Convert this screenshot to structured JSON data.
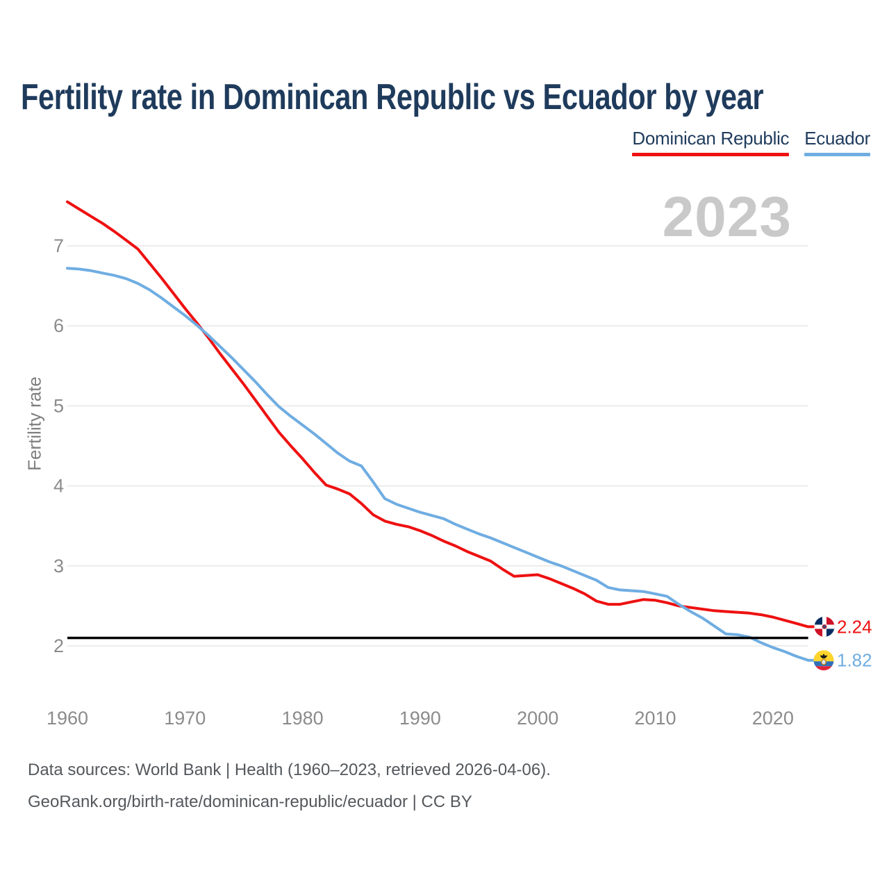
{
  "title": "Fertility rate in Dominican Republic vs Ecuador by year",
  "watermark": "2023",
  "legend": {
    "items": [
      {
        "label": "Dominican Republic"
      },
      {
        "label": "Ecuador"
      }
    ]
  },
  "y_axis": {
    "label": "Fertility rate",
    "ticks": [
      2,
      3,
      4,
      5,
      6,
      7
    ]
  },
  "x_axis": {
    "ticks": [
      1960,
      1970,
      1980,
      1990,
      2000,
      2010,
      2020
    ]
  },
  "end_labels": [
    {
      "series": "Dominican Republic",
      "value": "2.24",
      "icon": "dominican-republic-flag-icon"
    },
    {
      "series": "Ecuador",
      "value": "1.82",
      "icon": "ecuador-flag-icon"
    }
  ],
  "footer": {
    "line1": "Data sources: World Bank | Health (1960–2023, retrieved 2026-04-06).",
    "line2": "GeoRank.org/birth-rate/dominican-republic/ecuador | CC BY"
  },
  "colors": {
    "dominican_republic": "#ee1111",
    "ecuador": "#6fade2",
    "title_text": "#1f3b5c",
    "axis_text": "#8b8b8b",
    "gridline": "#ececec",
    "reference_line": "#000000",
    "watermark": "#c9c9c9",
    "footer_text": "#54585c",
    "background": "#ffffff"
  },
  "flags": {
    "dominican_republic": {
      "navy": "#002d62",
      "red": "#ce1126",
      "cross": "#ffffff",
      "emblem_outer": "#a32638",
      "emblem_inner": "#27508f"
    },
    "ecuador": {
      "yellow": "#ffd42d",
      "blue": "#2f6fb7",
      "red": "#e0243a",
      "emblem": "#1a1a1a",
      "ring": "#c8861f",
      "ring_fill": "#dde9f4"
    }
  },
  "chart_data": {
    "type": "line",
    "title": "Fertility rate in Dominican Republic vs Ecuador by year",
    "xlabel": "",
    "ylabel": "Fertility rate",
    "x_range": [
      1960,
      2023
    ],
    "y_ticks": [
      2,
      3,
      4,
      5,
      6,
      7
    ],
    "x_ticks": [
      1960,
      1970,
      1980,
      1990,
      2000,
      2010,
      2020
    ],
    "reference_line": 2.1,
    "grid": "horizontal-only",
    "legend_position": "top-right",
    "years": [
      1960,
      1961,
      1962,
      1963,
      1964,
      1965,
      1966,
      1967,
      1968,
      1969,
      1970,
      1971,
      1972,
      1973,
      1974,
      1975,
      1976,
      1977,
      1978,
      1979,
      1980,
      1981,
      1982,
      1983,
      1984,
      1985,
      1986,
      1987,
      1988,
      1989,
      1990,
      1991,
      1992,
      1993,
      1994,
      1995,
      1996,
      1997,
      1998,
      1999,
      2000,
      2001,
      2002,
      2003,
      2004,
      2005,
      2006,
      2007,
      2008,
      2009,
      2010,
      2011,
      2012,
      2013,
      2014,
      2015,
      2016,
      2017,
      2018,
      2019,
      2020,
      2021,
      2022,
      2023
    ],
    "series": [
      {
        "name": "Dominican Republic",
        "color": "#ee1111",
        "end_label": "2.24",
        "values": [
          7.55,
          7.46,
          7.37,
          7.28,
          7.18,
          7.07,
          6.96,
          6.78,
          6.6,
          6.41,
          6.22,
          6.04,
          5.85,
          5.65,
          5.46,
          5.27,
          5.07,
          4.87,
          4.67,
          4.5,
          4.34,
          4.17,
          4.01,
          3.96,
          3.9,
          3.78,
          3.64,
          3.56,
          3.52,
          3.49,
          3.44,
          3.38,
          3.31,
          3.25,
          3.18,
          3.12,
          3.06,
          2.96,
          2.87,
          2.88,
          2.89,
          2.84,
          2.78,
          2.72,
          2.65,
          2.56,
          2.52,
          2.52,
          2.55,
          2.58,
          2.57,
          2.54,
          2.5,
          2.48,
          2.46,
          2.44,
          2.43,
          2.42,
          2.41,
          2.39,
          2.36,
          2.32,
          2.28,
          2.24
        ]
      },
      {
        "name": "Ecuador",
        "color": "#6fade2",
        "end_label": "1.82",
        "values": [
          6.72,
          6.71,
          6.69,
          6.66,
          6.63,
          6.59,
          6.53,
          6.45,
          6.35,
          6.24,
          6.13,
          6.01,
          5.88,
          5.74,
          5.6,
          5.45,
          5.3,
          5.14,
          4.99,
          4.87,
          4.76,
          4.65,
          4.53,
          4.41,
          4.31,
          4.25,
          4.05,
          3.84,
          3.77,
          3.72,
          3.67,
          3.63,
          3.59,
          3.52,
          3.46,
          3.4,
          3.35,
          3.29,
          3.23,
          3.17,
          3.11,
          3.05,
          3.0,
          2.94,
          2.88,
          2.82,
          2.73,
          2.7,
          2.69,
          2.68,
          2.65,
          2.62,
          2.52,
          2.43,
          2.35,
          2.25,
          2.15,
          2.14,
          2.11,
          2.04,
          1.98,
          1.93,
          1.87,
          1.82
        ]
      }
    ]
  }
}
